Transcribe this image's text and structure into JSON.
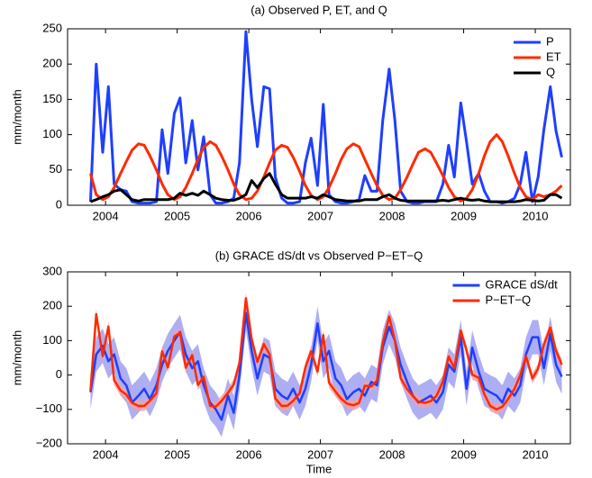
{
  "chart_data": [
    {
      "type": "line",
      "title": "(a) Observed P, ET, and Q",
      "ylabel": "mm/month",
      "x": [
        2003.79,
        2003.87,
        2003.96,
        2004.04,
        2004.12,
        2004.21,
        2004.29,
        2004.37,
        2004.46,
        2004.54,
        2004.62,
        2004.71,
        2004.79,
        2004.87,
        2004.96,
        2005.04,
        2005.12,
        2005.21,
        2005.29,
        2005.37,
        2005.46,
        2005.54,
        2005.62,
        2005.71,
        2005.79,
        2005.87,
        2005.96,
        2006.04,
        2006.12,
        2006.21,
        2006.29,
        2006.37,
        2006.46,
        2006.54,
        2006.62,
        2006.71,
        2006.79,
        2006.87,
        2006.96,
        2007.04,
        2007.12,
        2007.21,
        2007.29,
        2007.37,
        2007.46,
        2007.54,
        2007.62,
        2007.71,
        2007.79,
        2007.87,
        2007.96,
        2008.04,
        2008.12,
        2008.21,
        2008.29,
        2008.37,
        2008.46,
        2008.54,
        2008.62,
        2008.71,
        2008.79,
        2008.87,
        2008.96,
        2009.04,
        2009.12,
        2009.21,
        2009.29,
        2009.37,
        2009.46,
        2009.54,
        2009.62,
        2009.71,
        2009.79,
        2009.87,
        2009.96,
        2010.04,
        2010.12,
        2010.21,
        2010.29,
        2010.37
      ],
      "series": [
        {
          "name": "P",
          "color": "#1f3fff",
          "values": [
            5,
            200,
            75,
            168,
            30,
            22,
            20,
            5,
            3,
            3,
            3,
            5,
            107,
            45,
            130,
            152,
            60,
            120,
            50,
            97,
            15,
            3,
            3,
            5,
            10,
            60,
            246,
            150,
            83,
            168,
            165,
            40,
            10,
            3,
            3,
            5,
            60,
            95,
            28,
            143,
            15,
            5,
            3,
            3,
            5,
            8,
            42,
            20,
            20,
            120,
            193,
            120,
            20,
            5,
            3,
            3,
            5,
            5,
            5,
            30,
            85,
            40,
            145,
            90,
            30,
            45,
            20,
            5,
            5,
            3,
            5,
            10,
            30,
            75,
            5,
            40,
            107,
            168,
            105,
            68
          ]
        },
        {
          "name": "ET",
          "color": "#ff2a00",
          "values": [
            45,
            15,
            8,
            12,
            25,
            45,
            62,
            78,
            87,
            85,
            70,
            50,
            30,
            15,
            8,
            12,
            25,
            45,
            65,
            82,
            90,
            85,
            70,
            50,
            30,
            15,
            8,
            10,
            20,
            40,
            60,
            78,
            85,
            82,
            68,
            48,
            28,
            14,
            8,
            12,
            25,
            45,
            65,
            80,
            87,
            83,
            65,
            45,
            28,
            14,
            8,
            10,
            22,
            40,
            58,
            75,
            80,
            75,
            60,
            42,
            25,
            12,
            6,
            10,
            22,
            45,
            70,
            90,
            100,
            90,
            70,
            45,
            25,
            12,
            8,
            15,
            12,
            15,
            20,
            28
          ]
        },
        {
          "name": "Q",
          "color": "#000000",
          "values": [
            5,
            8,
            12,
            15,
            20,
            22,
            15,
            8,
            6,
            8,
            8,
            8,
            8,
            8,
            10,
            17,
            14,
            17,
            14,
            20,
            15,
            10,
            8,
            7,
            7,
            10,
            15,
            35,
            25,
            38,
            45,
            30,
            15,
            10,
            10,
            10,
            10,
            12,
            10,
            15,
            12,
            8,
            7,
            6,
            6,
            6,
            8,
            8,
            8,
            12,
            15,
            10,
            7,
            6,
            6,
            6,
            6,
            6,
            6,
            7,
            6,
            8,
            10,
            8,
            7,
            8,
            6,
            5,
            5,
            5,
            5,
            5,
            6,
            8,
            7,
            6,
            7,
            15,
            15,
            10
          ]
        }
      ],
      "xlim": [
        2003.47,
        2010.49
      ],
      "ylim": [
        0,
        250
      ],
      "xticks": [
        2004,
        2005,
        2006,
        2007,
        2008,
        2009,
        2010
      ],
      "yticks": [
        0,
        50,
        100,
        150,
        200,
        250
      ],
      "legend": "upper right"
    },
    {
      "type": "line",
      "title": "(b) GRACE dS/dt vs Observed P−ET−Q",
      "ylabel": "mm/month",
      "xlabel": "Time",
      "x": [
        2003.79,
        2003.87,
        2003.96,
        2004.04,
        2004.12,
        2004.21,
        2004.29,
        2004.37,
        2004.46,
        2004.54,
        2004.62,
        2004.71,
        2004.79,
        2004.87,
        2004.96,
        2005.04,
        2005.12,
        2005.21,
        2005.29,
        2005.37,
        2005.46,
        2005.54,
        2005.62,
        2005.71,
        2005.79,
        2005.87,
        2005.96,
        2006.04,
        2006.12,
        2006.21,
        2006.29,
        2006.37,
        2006.46,
        2006.54,
        2006.62,
        2006.71,
        2006.79,
        2006.87,
        2006.96,
        2007.04,
        2007.12,
        2007.21,
        2007.29,
        2007.37,
        2007.46,
        2007.54,
        2007.62,
        2007.71,
        2007.79,
        2007.87,
        2007.96,
        2008.04,
        2008.12,
        2008.21,
        2008.29,
        2008.37,
        2008.46,
        2008.54,
        2008.62,
        2008.71,
        2008.79,
        2008.87,
        2008.96,
        2009.04,
        2009.12,
        2009.21,
        2009.29,
        2009.37,
        2009.46,
        2009.54,
        2009.62,
        2009.71,
        2009.79,
        2009.87,
        2009.96,
        2010.04,
        2010.12,
        2010.21,
        2010.29,
        2010.37
      ],
      "series": [
        {
          "name": "GRACE dS/dt",
          "color": "#1f3fff",
          "band_color": "#9a9af0",
          "error": 50,
          "values": [
            -50,
            60,
            85,
            40,
            60,
            -10,
            -30,
            -80,
            -60,
            -40,
            -70,
            -30,
            30,
            70,
            100,
            125,
            60,
            20,
            40,
            -30,
            -80,
            -100,
            -130,
            -60,
            -110,
            0,
            180,
            70,
            -10,
            60,
            50,
            -40,
            -60,
            -70,
            -40,
            -80,
            -40,
            30,
            150,
            40,
            70,
            -10,
            -30,
            -70,
            -50,
            -40,
            -60,
            -20,
            -30,
            80,
            140,
            100,
            30,
            -20,
            -60,
            -80,
            -70,
            -60,
            -80,
            -50,
            30,
            10,
            110,
            -40,
            80,
            10,
            -40,
            -50,
            -60,
            -80,
            -40,
            -60,
            -30,
            60,
            110,
            110,
            20,
            120,
            30,
            -5
          ]
        },
        {
          "name": "P−ET−Q",
          "color": "#ff2a00",
          "band_color": "#f4a0a0",
          "error": 15,
          "values": [
            -45,
            177,
            55,
            141,
            -15,
            -45,
            -57,
            -81,
            -90,
            -90,
            -75,
            -53,
            69,
            22,
            112,
            123,
            21,
            58,
            -29,
            -5,
            -90,
            -92,
            -75,
            -52,
            -27,
            35,
            223,
            105,
            38,
            90,
            60,
            -68,
            -90,
            -89,
            -75,
            -53,
            22,
            69,
            10,
            116,
            -22,
            -48,
            -69,
            -83,
            -88,
            -81,
            -31,
            -33,
            -16,
            94,
            170,
            100,
            -9,
            -41,
            -61,
            -78,
            -81,
            -76,
            -61,
            -19,
            54,
            20,
            129,
            72,
            1,
            -8,
            -56,
            -90,
            -100,
            -92,
            -70,
            -40,
            -1,
            55,
            -10,
            19,
            88,
            138,
            70,
            30
          ]
        }
      ],
      "xlim": [
        2003.47,
        2010.49
      ],
      "ylim": [
        -200,
        300
      ],
      "xticks": [
        2004,
        2005,
        2006,
        2007,
        2008,
        2009,
        2010
      ],
      "yticks": [
        {
          "value": -200,
          "label": "−200"
        },
        {
          "value": -100,
          "label": "−100"
        },
        0,
        100,
        200,
        300
      ],
      "legend": "upper right"
    }
  ]
}
